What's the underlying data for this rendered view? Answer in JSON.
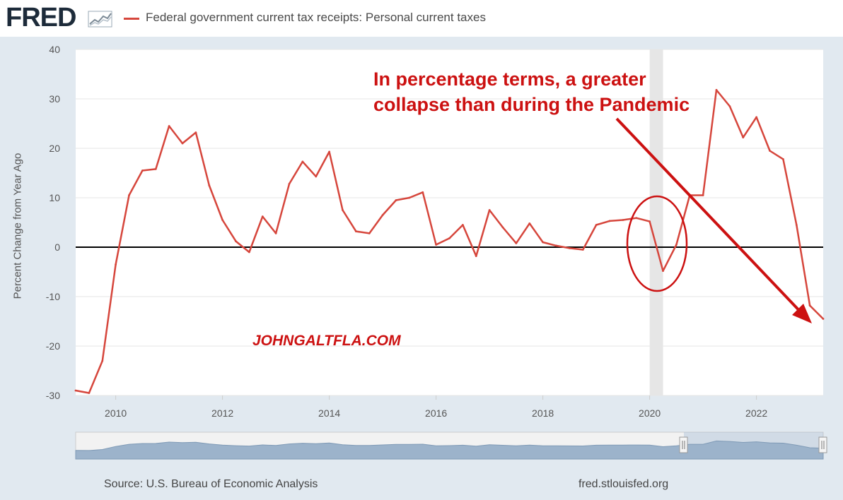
{
  "header": {
    "logo": "FRED",
    "logo_icon": "chart-line-icon",
    "legend_label": "Federal government current tax receipts: Personal current taxes"
  },
  "colors": {
    "series": "#d6463c",
    "annotation": "#cc1111",
    "recession": "#e6e6e6",
    "navigator": "#9cb3cb"
  },
  "chart_data": {
    "type": "line",
    "title": "",
    "ylabel": "Percent Change from Year Ago",
    "xlabel": "",
    "ylim": [
      -30,
      40
    ],
    "xlim": [
      2009.25,
      2023.25
    ],
    "yticks": [
      40,
      30,
      20,
      10,
      0,
      -10,
      -20,
      -30
    ],
    "xticks": [
      2010,
      2012,
      2014,
      2016,
      2018,
      2020,
      2022
    ],
    "grid": true,
    "recession_shading": [
      2020.0,
      2020.25
    ],
    "series": [
      {
        "name": "Federal government current tax receipts: Personal current taxes",
        "x": [
          2009.25,
          2009.5,
          2009.75,
          2010.0,
          2010.25,
          2010.5,
          2010.75,
          2011.0,
          2011.25,
          2011.5,
          2011.75,
          2012.0,
          2012.25,
          2012.5,
          2012.75,
          2013.0,
          2013.25,
          2013.5,
          2013.75,
          2014.0,
          2014.25,
          2014.5,
          2014.75,
          2015.0,
          2015.25,
          2015.5,
          2015.75,
          2016.0,
          2016.25,
          2016.5,
          2016.75,
          2017.0,
          2017.25,
          2017.5,
          2017.75,
          2018.0,
          2018.25,
          2018.5,
          2018.75,
          2019.0,
          2019.25,
          2019.5,
          2019.75,
          2020.0,
          2020.25,
          2020.5,
          2020.75,
          2021.0,
          2021.25,
          2021.5,
          2021.75,
          2022.0,
          2022.25,
          2022.5,
          2022.75,
          2023.0,
          2023.25
        ],
        "y": [
          -29,
          -29.5,
          -23,
          -3.5,
          10.5,
          15.5,
          15.8,
          24.5,
          21,
          23.2,
          12.5,
          5.5,
          1.2,
          -1,
          6.2,
          2.8,
          12.8,
          17.3,
          14.3,
          19.3,
          7.5,
          3.2,
          2.8,
          6.5,
          9.5,
          10,
          11.1,
          0.5,
          1.8,
          4.5,
          -1.8,
          7.5,
          4,
          0.8,
          4.8,
          1,
          0.3,
          -0.2,
          -0.5,
          4.5,
          5.3,
          5.5,
          5.9,
          5.2,
          -4.8,
          0.5,
          10.5,
          10.5,
          31.8,
          28.5,
          22.2,
          26.3,
          19.5,
          17.8,
          4.5,
          -11.8,
          -14.5
        ]
      }
    ],
    "annotations": [
      {
        "text": "In percentage terms, a greater collapse than during the Pandemic",
        "lines": [
          "In percentage terms, a greater",
          "collapse than during the Pandemic"
        ]
      },
      {
        "text": "JOHNGALTFLA.COM"
      }
    ]
  },
  "footer": {
    "source": "Source: U.S. Bureau of Economic Analysis",
    "url": "fred.stlouisfed.org"
  }
}
